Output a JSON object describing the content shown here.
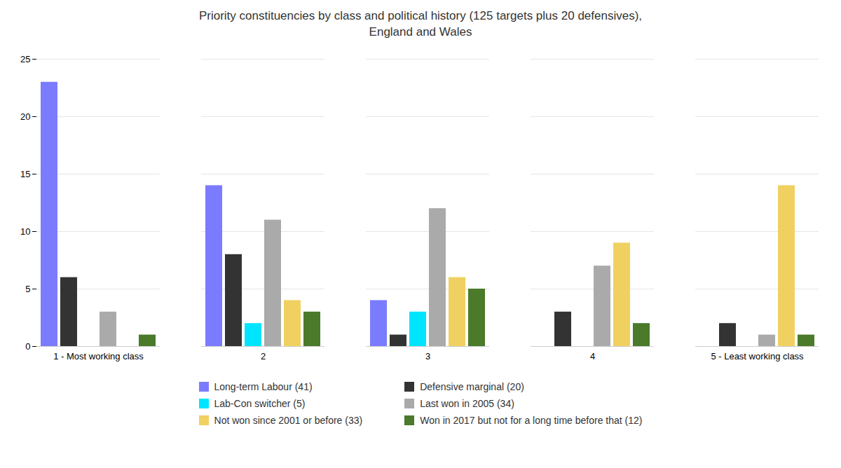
{
  "chart_data": {
    "type": "bar",
    "title": "Priority constituencies by class and political history (125 targets plus 20 defensives),\nEngland and Wales",
    "categories": [
      "1 - Most working class",
      "2",
      "3",
      "4",
      "5 - Least working class"
    ],
    "series": [
      {
        "name": "Long-term Labour (41)",
        "color": "#7b7bff",
        "values": [
          23,
          14,
          4,
          0,
          0
        ]
      },
      {
        "name": "Defensive marginal (20)",
        "color": "#333333",
        "values": [
          6,
          8,
          1,
          3,
          2
        ]
      },
      {
        "name": "Lab-Con switcher (5)",
        "color": "#00e5ff",
        "values": [
          0,
          2,
          3,
          0,
          0
        ]
      },
      {
        "name": "Last won in 2005 (34)",
        "color": "#aaaaaa",
        "values": [
          3,
          11,
          12,
          7,
          1
        ]
      },
      {
        "name": "Not won since 2001 or before (33)",
        "color": "#f0d060",
        "values": [
          0,
          4,
          6,
          9,
          14
        ]
      },
      {
        "name": "Won in 2017 but not for a long time before that (12)",
        "color": "#4a7a2a",
        "values": [
          1,
          3,
          5,
          2,
          1
        ]
      }
    ],
    "ylim": [
      0,
      25
    ],
    "yticks": [
      0,
      5,
      10,
      15,
      20,
      25
    ],
    "grid": true,
    "legend": "bottom"
  }
}
